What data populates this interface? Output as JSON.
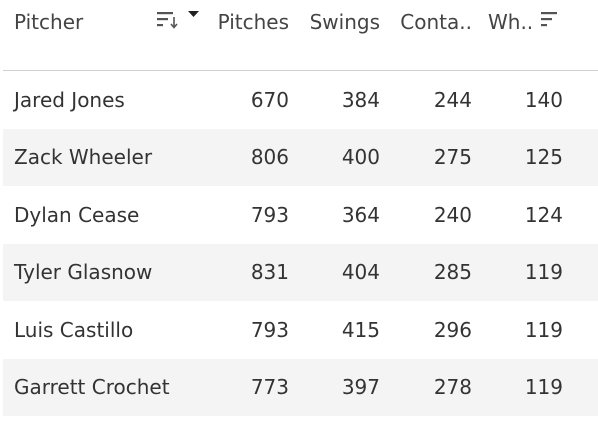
{
  "table": {
    "headers": [
      "Pitcher",
      "Pitches",
      "Swings",
      "Conta..",
      "Wh.."
    ],
    "rows": [
      [
        "Jared Jones",
        670,
        384,
        244,
        140
      ],
      [
        "Zack Wheeler",
        806,
        400,
        275,
        125
      ],
      [
        "Dylan Cease",
        793,
        364,
        240,
        124
      ],
      [
        "Tyler Glasnow",
        831,
        404,
        285,
        119
      ],
      [
        "Luis Castillo",
        793,
        415,
        296,
        119
      ],
      [
        "Garrett Crochet",
        773,
        397,
        278,
        119
      ]
    ]
  }
}
